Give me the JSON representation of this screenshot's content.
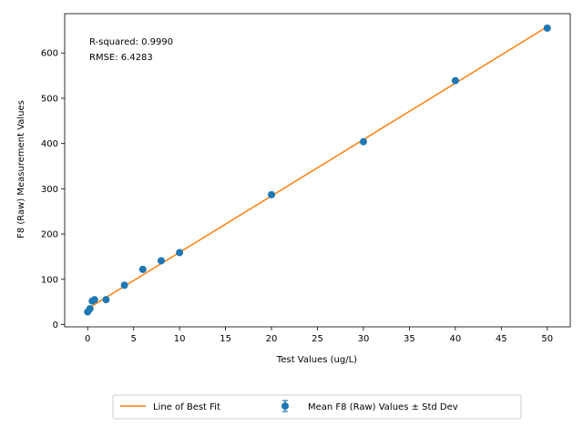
{
  "chart_data": {
    "type": "scatter",
    "xlabel": "Test Values (ug/L)",
    "ylabel": "F8 (Raw) Measurement Values",
    "xlim": [
      -2.5,
      52.5
    ],
    "ylim": [
      -5,
      687
    ],
    "xticks": [
      0,
      5,
      10,
      15,
      20,
      25,
      30,
      35,
      40,
      45,
      50
    ],
    "yticks": [
      0,
      100,
      200,
      300,
      400,
      500,
      600
    ],
    "grid": false,
    "annotations": [
      "R-squared: 0.9990",
      "RMSE: 6.4283"
    ],
    "legend": {
      "placement": "bottom-center",
      "entries": [
        "Line of Best Fit",
        "Mean F8 (Raw) Values ± Std Dev"
      ]
    },
    "series": [
      {
        "name": "Mean F8 (Raw) Values ± Std Dev",
        "kind": "errorbar-points",
        "color": "#1f77b4",
        "x": [
          0,
          0.25,
          0.5,
          0.75,
          2,
          4,
          6,
          8,
          10,
          20,
          30,
          40,
          50
        ],
        "y": [
          28,
          35,
          52,
          55,
          55,
          87,
          122,
          141,
          159,
          287,
          404,
          539,
          655
        ]
      },
      {
        "name": "Line of Best Fit",
        "kind": "line",
        "color": "#ff7f0e",
        "x": [
          0,
          50
        ],
        "y": [
          35,
          658
        ]
      }
    ]
  }
}
